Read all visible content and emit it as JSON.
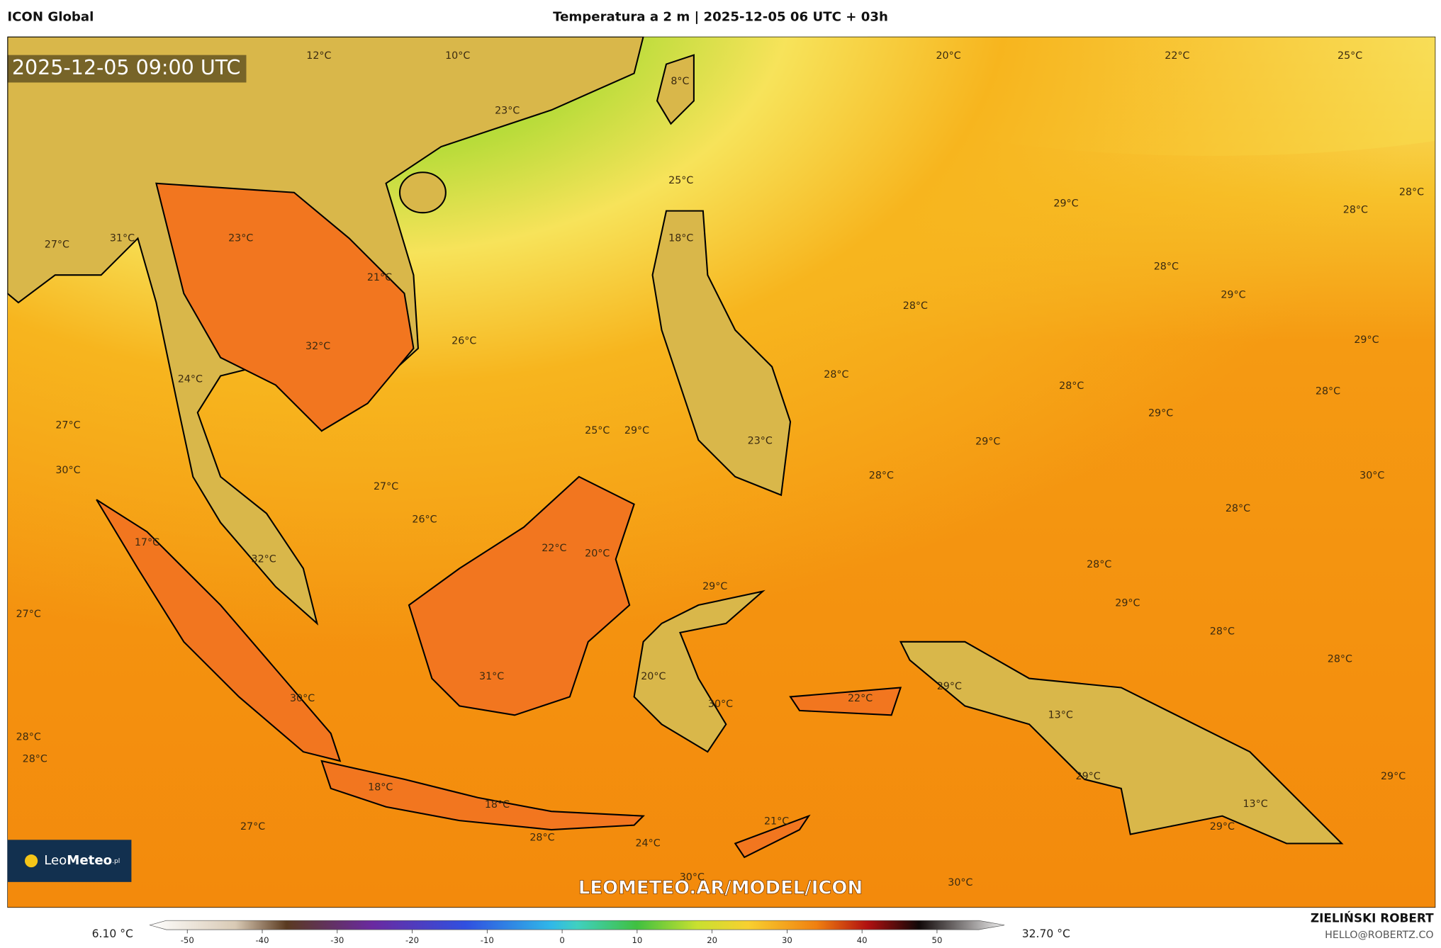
{
  "header": {
    "model": "ICON Global",
    "title": "Temperatura a 2 m | 2025-12-05 06 UTC + 03h"
  },
  "map": {
    "timestamp": "2025-12-05 09:00 UTC",
    "watermark": "LEOMETEO.AR/MODEL/ICON",
    "logo": {
      "name": "Leo",
      "brand": "Meteo",
      "suffix": ".pl"
    },
    "labels": [
      "12°C",
      "10°C",
      "23°C",
      "8°C",
      "20°C",
      "22°C",
      "25°C",
      "25°C",
      "29°C",
      "28°C",
      "28°C",
      "27°C",
      "31°C",
      "23°C",
      "18°C",
      "28°C",
      "21°C",
      "29°C",
      "28°C",
      "26°C",
      "32°C",
      "29°C",
      "24°C",
      "28°C",
      "28°C",
      "28°C",
      "27°C",
      "25°C",
      "29°C",
      "29°C",
      "23°C",
      "29°C",
      "30°C",
      "28°C",
      "30°C",
      "27°C",
      "28°C",
      "26°C",
      "17°C",
      "22°C",
      "20°C",
      "32°C",
      "28°C",
      "29°C",
      "29°C",
      "27°C",
      "28°C",
      "28°C",
      "31°C",
      "20°C",
      "29°C",
      "22°C",
      "30°C",
      "30°C",
      "13°C",
      "28°C",
      "28°C",
      "29°C",
      "29°C",
      "18°C",
      "13°C",
      "18°C",
      "21°C",
      "27°C",
      "29°C",
      "28°C",
      "24°C",
      "30°C",
      "30°C"
    ]
  },
  "colorbar": {
    "min_label": "6.10 °C",
    "max_label": "32.70 °C",
    "range": [
      -55,
      59
    ],
    "ticks": [
      -50,
      -40,
      -30,
      -20,
      -10,
      0,
      10,
      20,
      30,
      40,
      50
    ]
  },
  "footer": {
    "author": "ZIELIŃSKI ROBERT",
    "contact": "HELLO@ROBERTZ.CO"
  }
}
